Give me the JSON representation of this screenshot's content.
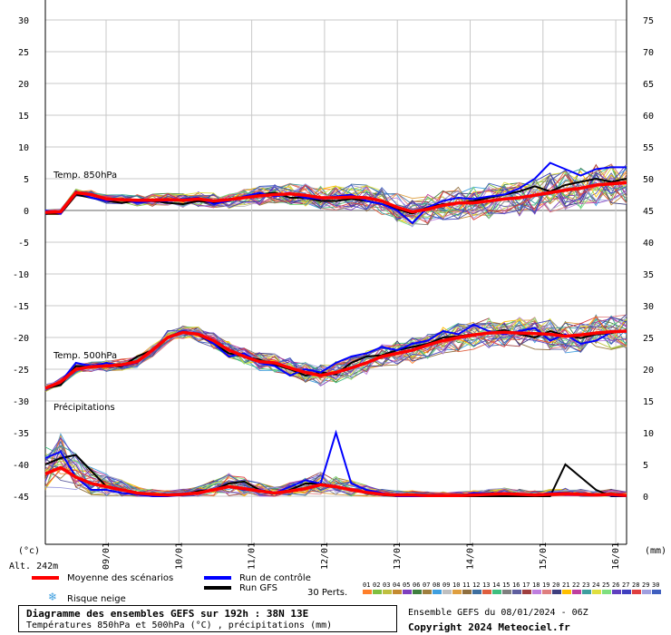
{
  "chart_data": {
    "type": "line",
    "x_dates": [
      "09/01",
      "10/01",
      "11/01",
      "12/01",
      "13/01",
      "14/01",
      "15/01",
      "16/01"
    ],
    "y_left_ticks": [
      30,
      25,
      20,
      15,
      10,
      5,
      0,
      -5,
      -10,
      -15,
      -20,
      -25,
      -30,
      -35,
      -40,
      -45
    ],
    "y_right_ticks": [
      75,
      70,
      65,
      60,
      55,
      50,
      45,
      40,
      35,
      30,
      25,
      20,
      15,
      10,
      5,
      0
    ],
    "y_left_unit": "(°c)",
    "y_right_unit": "(mm)",
    "altitude": "Alt. 242m",
    "grid": true,
    "panel_labels": {
      "t850": "Temp. 850hPa",
      "t500": "Temp. 500hPa",
      "precip": "Précipitations"
    },
    "mean_t850": [
      -0.3,
      -0.2,
      2.8,
      2.5,
      1.8,
      1.7,
      1.6,
      1.6,
      1.7,
      1.6,
      1.8,
      1.5,
      1.7,
      2.0,
      2.3,
      2.5,
      2.6,
      2.4,
      2.0,
      2.0,
      2.1,
      2.0,
      1.5,
      0.5,
      -0.2,
      0.2,
      0.8,
      1.2,
      1.2,
      1.5,
      1.8,
      2.0,
      2.4,
      2.8,
      3.2,
      3.5,
      4.0,
      4.2,
      4.4
    ],
    "mean_t500": [
      -28,
      -27,
      -25,
      -24.6,
      -24.5,
      -24.3,
      -23.8,
      -22,
      -20,
      -19.2,
      -19.5,
      -20.5,
      -22,
      -23,
      -23.8,
      -24,
      -24.8,
      -25.5,
      -26,
      -25.5,
      -24.8,
      -24,
      -23,
      -22.5,
      -22,
      -21.2,
      -20.5,
      -20,
      -19.6,
      -19.3,
      -19.2,
      -19.3,
      -19.4,
      -19.5,
      -19.8,
      -19.6,
      -19.3,
      -19.1,
      -19.0
    ],
    "mean_precip_mm": [
      3.5,
      4.5,
      3.0,
      2.0,
      1.5,
      1.0,
      0.5,
      0.3,
      0.2,
      0.3,
      0.5,
      1.0,
      1.5,
      1.2,
      0.8,
      0.5,
      0.8,
      1.2,
      1.8,
      1.5,
      1.0,
      0.6,
      0.3,
      0.2,
      0.2,
      0.1,
      0.1,
      0.1,
      0.2,
      0.3,
      0.4,
      0.3,
      0.2,
      0.3,
      0.4,
      0.3,
      0.2,
      0.3,
      0.1
    ],
    "control_t850": [
      0.0,
      -0.5,
      3.0,
      2.0,
      1.5,
      1.8,
      1.2,
      1.5,
      1.5,
      1.8,
      2.0,
      1.0,
      1.5,
      2.2,
      2.8,
      2.2,
      2.6,
      2.0,
      1.8,
      2.2,
      2.5,
      1.5,
      1.0,
      0.0,
      -2.0,
      0.5,
      1.5,
      2.0,
      1.8,
      2.2,
      2.5,
      3.5,
      5.0,
      7.5,
      6.5,
      5.5,
      6.5,
      6.8,
      6.8
    ],
    "control_t500": [
      -28,
      -27,
      -24,
      -24.5,
      -24,
      -24.5,
      -24,
      -22,
      -20,
      -19,
      -19.5,
      -21,
      -23,
      -22.5,
      -24,
      -24.5,
      -26,
      -25,
      -25.5,
      -24,
      -23,
      -22.5,
      -21.5,
      -22,
      -21,
      -20.5,
      -19,
      -19.5,
      -18,
      -19,
      -19.5,
      -19,
      -18.5,
      -20.5,
      -19.5,
      -21,
      -20.5,
      -19.2,
      -19
    ],
    "control_precip_mm": [
      6,
      7,
      3,
      1,
      1,
      0.5,
      0.3,
      0,
      0,
      0.2,
      0.5,
      1,
      1.5,
      1,
      1,
      0.5,
      1.5,
      2.5,
      2,
      10,
      2,
      1,
      0.5,
      0,
      0,
      0,
      0,
      0,
      0.5,
      0.5,
      0.5,
      0.3,
      0.2,
      0.5,
      0.5,
      0.3,
      0.2,
      0.1,
      0
    ],
    "gfs_t850": [
      -0.5,
      -0.5,
      2.5,
      2.0,
      1.5,
      1.2,
      1.5,
      1.5,
      1.2,
      1.0,
      1.5,
      1.2,
      1.8,
      2.0,
      2.5,
      2.8,
      2.0,
      2.0,
      1.5,
      1.5,
      1.8,
      1.5,
      1.0,
      0.2,
      -0.5,
      0.5,
      1.0,
      1.2,
      1.5,
      2.0,
      2.5,
      3.0,
      3.8,
      3.0,
      4.0,
      4.5,
      5.0,
      4.5,
      5.0
    ],
    "gfs_t500": [
      -28,
      -27.5,
      -24.5,
      -24.7,
      -24.4,
      -24.6,
      -23,
      -22,
      -20,
      -19,
      -19.6,
      -21,
      -22.5,
      -23,
      -23.5,
      -24.3,
      -25,
      -26,
      -25.5,
      -25.8,
      -24,
      -23,
      -22.8,
      -22,
      -21.5,
      -21,
      -20,
      -19.8,
      -19.5,
      -19.3,
      -18.8,
      -19.5,
      -20.0,
      -19.0,
      -19.7,
      -20.1,
      -19.5,
      -19.3,
      -18.9
    ],
    "gfs_precip_mm": [
      5,
      6,
      6.5,
      4,
      1.5,
      1,
      0.5,
      0.2,
      0.1,
      0.2,
      0.8,
      1,
      2,
      2.3,
      1,
      0.5,
      1,
      2,
      2,
      1.5,
      1,
      0.5,
      0.2,
      0,
      0,
      0,
      0,
      0,
      0,
      0,
      0,
      0,
      0,
      0,
      5,
      3,
      1,
      0,
      0
    ],
    "perturbation_colors": [
      "#ff7f2a",
      "#7fbf3f",
      "#bfbf3f",
      "#c48a30",
      "#7f3fbf",
      "#3f7f3f",
      "#9f7f3f",
      "#3f9fdf",
      "#bfbfbf",
      "#df9f3f",
      "#8f6f3f",
      "#3f6f9f",
      "#df5f3f",
      "#3fbf7f",
      "#7f7f7f",
      "#5f5f9f",
      "#9f3f3f",
      "#bf7fdf",
      "#df7f7f",
      "#3f3f7f",
      "#ffbf00",
      "#bf3f9f",
      "#3f9f9f",
      "#dfdf3f",
      "#7fdf7f",
      "#5f3fbf",
      "#3f3fbf",
      "#df3f3f",
      "#9f9fdf",
      "#3f5fbf"
    ]
  },
  "legend": {
    "mean_label": "Moyenne des scénarios",
    "control_label": "Run de contrôle",
    "gfs_label": "Run GFS",
    "snow_label": "Risque neige",
    "perts_label": "30 Perts.",
    "pert_numbers": [
      "01",
      "02",
      "03",
      "04",
      "05",
      "06",
      "07",
      "08",
      "09",
      "10",
      "11",
      "12",
      "13",
      "14",
      "15",
      "16",
      "17",
      "18",
      "19",
      "20",
      "21",
      "22",
      "23",
      "24",
      "25",
      "26",
      "27",
      "28",
      "29",
      "30"
    ],
    "mean_color": "#ff0000",
    "control_color": "#0000ff",
    "gfs_color": "#000000",
    "snow_icon": "snowflake-icon"
  },
  "footer": {
    "title": "Diagramme des ensembles GEFS sur 192h : 38N 13E",
    "subtitle": "Températures 850hPa et 500hPa (°C) , précipitations (mm)",
    "run_info": "Ensemble GEFS du 08/01/2024 - 06Z",
    "copyright": "Copyright 2024 Meteociel.fr"
  }
}
